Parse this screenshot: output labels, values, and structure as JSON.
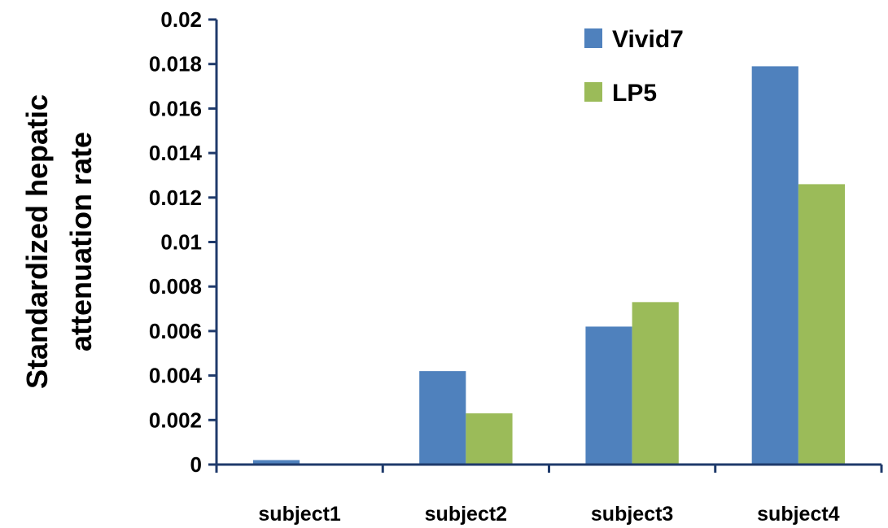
{
  "chart_data": {
    "type": "bar",
    "categories": [
      "subject1",
      "subject2",
      "subject3",
      "subject4"
    ],
    "series": [
      {
        "name": "Vivid7",
        "color": "#4F81BD",
        "values": [
          0.0002,
          0.0042,
          0.0062,
          0.0179
        ]
      },
      {
        "name": "LP5",
        "color": "#9BBB59",
        "values": [
          0.0,
          0.0023,
          0.0073,
          0.0126
        ]
      }
    ],
    "ylabel_lines": [
      "Standardized hepatic",
      "attenuation rate"
    ],
    "ylim": [
      0,
      0.02
    ],
    "yticks": [
      "0",
      "0.002",
      "0.004",
      "0.006",
      "0.008",
      "0.01",
      "0.012",
      "0.014",
      "0.016",
      "0.018",
      "0.02"
    ],
    "grid": false,
    "legend_position": "top-right"
  }
}
